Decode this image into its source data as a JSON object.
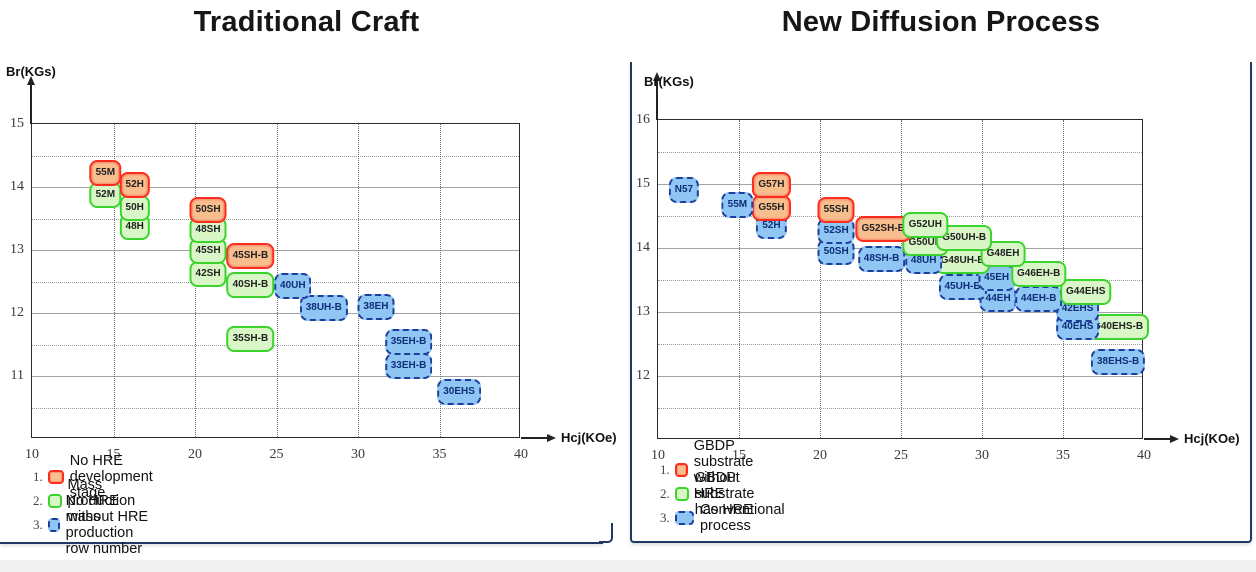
{
  "colors": {
    "orange_fill": "#F9BE8E",
    "orange_border": "#FB2E1D",
    "green_fill": "#D9F7C6",
    "green_border": "#3BD42C",
    "blue_fill": "#8FC6F3",
    "blue_border": "#1E3E9E",
    "frame": "#2B2B2B",
    "card_border": "#1F3864"
  },
  "chart_data": [
    {
      "type": "scatter",
      "title": "Traditional Craft",
      "xlabel": "Hcj(KOe)",
      "ylabel": "Br(KGs)",
      "xlim": [
        10,
        40
      ],
      "ylim": [
        10,
        15
      ],
      "x_ticks": [
        10,
        15,
        20,
        25,
        30,
        35,
        40
      ],
      "y_ticks": [
        15,
        14,
        13,
        12,
        11
      ],
      "grid": "on",
      "legend_position": "below",
      "series": [
        {
          "name": "No HRE development stage",
          "style": "orange-solid",
          "points": [
            {
              "label": "55M",
              "x": 14.5,
              "y": 14.23
            },
            {
              "label": "52H",
              "x": 16.3,
              "y": 14.03
            },
            {
              "label": "50SH",
              "x": 20.8,
              "y": 13.64
            },
            {
              "label": "45SH-B",
              "x": 23.4,
              "y": 12.9
            }
          ]
        },
        {
          "name": "Mass production without HRE",
          "style": "green-solid",
          "points": [
            {
              "label": "52M",
              "x": 14.5,
              "y": 13.87
            },
            {
              "label": "50H",
              "x": 16.3,
              "y": 13.67
            },
            {
              "label": "48H",
              "x": 16.3,
              "y": 13.36
            },
            {
              "label": "48SH",
              "x": 20.8,
              "y": 13.32
            },
            {
              "label": "45SH",
              "x": 20.8,
              "y": 12.98
            },
            {
              "label": "42SH",
              "x": 20.8,
              "y": 12.62
            },
            {
              "label": "40SH-B",
              "x": 23.4,
              "y": 12.44
            },
            {
              "label": "35SH-B",
              "x": 23.4,
              "y": 11.59
            }
          ]
        },
        {
          "name": "No HRE mass production row number",
          "style": "blue-dashed",
          "points": [
            {
              "label": "40UH",
              "x": 26.0,
              "y": 12.43
            },
            {
              "label": "38UH-B",
              "x": 27.9,
              "y": 12.08
            },
            {
              "label": "38EH",
              "x": 31.1,
              "y": 12.1
            },
            {
              "label": "35EH-B",
              "x": 33.1,
              "y": 11.54
            },
            {
              "label": "33EH-B",
              "x": 33.1,
              "y": 11.16
            },
            {
              "label": "30EHS",
              "x": 36.2,
              "y": 10.75
            }
          ]
        }
      ],
      "legend": [
        {
          "num": "1.",
          "label": "No HRE development stage",
          "style": "orange-solid"
        },
        {
          "num": "2.",
          "label": "Mass production without HRE",
          "style": "green-solid"
        },
        {
          "num": "3.",
          "label": "No HRE mass production row number",
          "style": "blue-dashed"
        }
      ]
    },
    {
      "type": "scatter",
      "title": "New Diffusion Process",
      "xlabel": "Hcj(KOe)",
      "ylabel": "Br(KGs)",
      "xlim": [
        10,
        40
      ],
      "ylim": [
        11,
        16
      ],
      "x_ticks": [
        10,
        15,
        20,
        25,
        30,
        35,
        40
      ],
      "y_ticks": [
        16,
        15,
        14,
        13,
        12
      ],
      "grid": "on",
      "legend_position": "below",
      "series": [
        {
          "name": "GBDP substrate without HRE",
          "style": "orange-solid",
          "points": [
            {
              "label": "G57H",
              "x": 17.0,
              "y": 14.98
            },
            {
              "label": "G55H",
              "x": 17.0,
              "y": 14.62
            },
            {
              "label": "55SH",
              "x": 21.0,
              "y": 14.59
            },
            {
              "label": "G52SH-B",
              "x": 23.9,
              "y": 14.3
            }
          ]
        },
        {
          "name": "GBDP substrate has HRE",
          "style": "green-solid",
          "points": [
            {
              "label": "G52UH",
              "x": 26.5,
              "y": 14.36
            },
            {
              "label": "G50UH",
              "x": 26.5,
              "y": 14.08
            },
            {
              "label": "G50UH-B",
              "x": 28.9,
              "y": 14.15
            },
            {
              "label": "G48UH-B",
              "x": 28.8,
              "y": 13.8
            },
            {
              "label": "G48EH",
              "x": 31.3,
              "y": 13.91
            },
            {
              "label": "G46EH-B",
              "x": 33.5,
              "y": 13.59
            },
            {
              "label": "G44EHS",
              "x": 36.4,
              "y": 13.31
            },
            {
              "label": "G40EHS-B",
              "x": 38.4,
              "y": 12.76
            }
          ]
        },
        {
          "name": "Conventional process",
          "style": "blue-dashed",
          "points": [
            {
              "label": "N57",
              "x": 11.6,
              "y": 14.91
            },
            {
              "label": "55M",
              "x": 14.9,
              "y": 14.67
            },
            {
              "label": "52H",
              "x": 17.0,
              "y": 14.34
            },
            {
              "label": "52SH",
              "x": 21.0,
              "y": 14.27
            },
            {
              "label": "50SH",
              "x": 21.0,
              "y": 13.94
            },
            {
              "label": "48SH-B",
              "x": 23.8,
              "y": 13.83
            },
            {
              "label": "48UH",
              "x": 26.4,
              "y": 13.8
            },
            {
              "label": "45UH-B",
              "x": 28.8,
              "y": 13.39
            },
            {
              "label": "45EH",
              "x": 30.9,
              "y": 13.53
            },
            {
              "label": "44EH",
              "x": 31.0,
              "y": 13.2
            },
            {
              "label": "44EH-B",
              "x": 33.5,
              "y": 13.2
            },
            {
              "label": "42EHS",
              "x": 35.9,
              "y": 13.05
            },
            {
              "label": "40EHS",
              "x": 35.9,
              "y": 12.76
            },
            {
              "label": "38EHS-B",
              "x": 38.4,
              "y": 12.22
            }
          ]
        }
      ],
      "legend": [
        {
          "num": "1.",
          "label": "GBDP substrate without HRE",
          "style": "orange-solid"
        },
        {
          "num": "2.",
          "label": "GBDP substrate has HRE",
          "style": "green-solid"
        },
        {
          "num": "3.",
          "label": "Conventional process",
          "style": "blue-dashed"
        }
      ]
    }
  ]
}
